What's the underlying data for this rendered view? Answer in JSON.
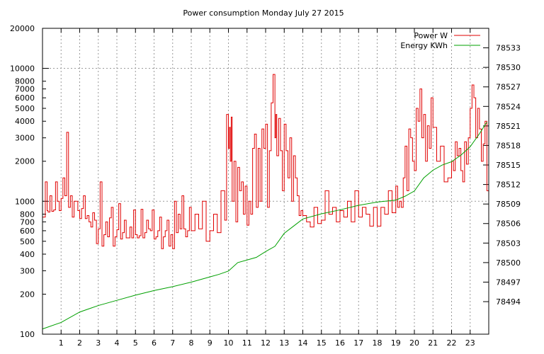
{
  "chart_data": {
    "type": "line",
    "title": "Power consumption Monday July 27 2015",
    "xlabel": "",
    "ylabel": "",
    "x_ticks": [
      "1",
      "2",
      "3",
      "4",
      "5",
      "6",
      "7",
      "8",
      "9",
      "10",
      "11",
      "12",
      "13",
      "14",
      "15",
      "16",
      "17",
      "18",
      "19",
      "20",
      "21",
      "22",
      "23"
    ],
    "xlim": [
      0,
      24
    ],
    "y_left": {
      "scale": "log",
      "lim": [
        100,
        20000
      ],
      "ticks": [
        100,
        200,
        300,
        400,
        500,
        600,
        700,
        800,
        1000,
        2000,
        3000,
        4000,
        5000,
        6000,
        7000,
        8000,
        10000,
        20000
      ]
    },
    "y_right": {
      "scale": "linear",
      "lim": [
        78489,
        78536
      ],
      "ticks": [
        78494,
        78497,
        78500,
        78503,
        78506,
        78509,
        78512,
        78515,
        78518,
        78521,
        78524,
        78527,
        78530,
        78533
      ]
    },
    "grid": true,
    "legend_position": "top-right",
    "series": [
      {
        "name": "Power W",
        "axis": "left",
        "color": "#e00000",
        "x": [
          0,
          0.15,
          0.25,
          0.3,
          0.4,
          0.5,
          0.6,
          0.7,
          0.8,
          0.9,
          1.0,
          1.1,
          1.2,
          1.3,
          1.4,
          1.5,
          1.6,
          1.7,
          1.8,
          1.9,
          2.0,
          2.1,
          2.2,
          2.3,
          2.4,
          2.5,
          2.6,
          2.7,
          2.8,
          2.9,
          3.0,
          3.1,
          3.2,
          3.3,
          3.4,
          3.5,
          3.6,
          3.7,
          3.8,
          3.9,
          4.0,
          4.1,
          4.2,
          4.3,
          4.4,
          4.5,
          4.6,
          4.7,
          4.8,
          4.9,
          5.0,
          5.1,
          5.2,
          5.3,
          5.4,
          5.5,
          5.6,
          5.7,
          5.8,
          5.9,
          6.0,
          6.1,
          6.2,
          6.3,
          6.4,
          6.5,
          6.6,
          6.7,
          6.8,
          6.9,
          7.0,
          7.1,
          7.2,
          7.3,
          7.4,
          7.5,
          7.6,
          7.7,
          7.8,
          7.9,
          8.0,
          8.2,
          8.4,
          8.6,
          8.8,
          9.0,
          9.2,
          9.4,
          9.6,
          9.8,
          9.9,
          10.0,
          10.05,
          10.1,
          10.15,
          10.2,
          10.3,
          10.4,
          10.5,
          10.6,
          10.7,
          10.8,
          10.9,
          11.0,
          11.1,
          11.2,
          11.3,
          11.4,
          11.5,
          11.6,
          11.7,
          11.8,
          11.9,
          12.0,
          12.1,
          12.2,
          12.3,
          12.4,
          12.5,
          12.55,
          12.6,
          12.7,
          12.8,
          12.9,
          13.0,
          13.1,
          13.2,
          13.3,
          13.4,
          13.5,
          13.6,
          13.7,
          13.8,
          13.9,
          14.0,
          14.2,
          14.4,
          14.6,
          14.8,
          15.0,
          15.2,
          15.4,
          15.6,
          15.8,
          16.0,
          16.2,
          16.4,
          16.6,
          16.8,
          17.0,
          17.2,
          17.4,
          17.6,
          17.8,
          18.0,
          18.2,
          18.4,
          18.6,
          18.8,
          19.0,
          19.1,
          19.2,
          19.3,
          19.4,
          19.5,
          19.6,
          19.7,
          19.8,
          19.9,
          20.0,
          20.1,
          20.2,
          20.3,
          20.4,
          20.5,
          20.6,
          20.7,
          20.8,
          20.9,
          21.0,
          21.2,
          21.4,
          21.6,
          21.8,
          22.0,
          22.1,
          22.2,
          22.3,
          22.4,
          22.5,
          22.6,
          22.7,
          22.8,
          22.9,
          23.0,
          23.1,
          23.2,
          23.3,
          23.4,
          23.5,
          23.6,
          23.7,
          23.8,
          23.9
        ],
        "y": [
          760,
          1400,
          850,
          830,
          1100,
          840,
          860,
          1400,
          1000,
          850,
          1050,
          1500,
          1100,
          3300,
          900,
          1100,
          760,
          1000,
          1000,
          850,
          740,
          880,
          1100,
          740,
          780,
          700,
          640,
          820,
          720,
          480,
          620,
          1400,
          460,
          560,
          700,
          540,
          750,
          900,
          460,
          540,
          610,
          960,
          520,
          580,
          720,
          530,
          530,
          640,
          530,
          860,
          560,
          530,
          550,
          870,
          530,
          580,
          720,
          620,
          600,
          860,
          520,
          540,
          600,
          760,
          440,
          540,
          600,
          720,
          460,
          560,
          440,
          1000,
          580,
          800,
          620,
          1100,
          620,
          540,
          600,
          900,
          600,
          800,
          620,
          1000,
          500,
          600,
          800,
          580,
          1200,
          720,
          4500,
          2500,
          3600,
          2000,
          4300,
          1000,
          2000,
          700,
          1800,
          1200,
          1400,
          800,
          1300,
          660,
          1000,
          800,
          2500,
          3200,
          900,
          2500,
          1000,
          3500,
          2500,
          3800,
          900,
          2400,
          5500,
          9000,
          3000,
          4500,
          2200,
          4200,
          2400,
          1200,
          3800,
          2400,
          1500,
          3000,
          1000,
          2200,
          1500,
          1100,
          780,
          850,
          780,
          700,
          640,
          900,
          680,
          720,
          1200,
          800,
          900,
          700,
          850,
          760,
          1000,
          700,
          1200,
          760,
          900,
          800,
          650,
          900,
          650,
          900,
          800,
          1200,
          820,
          1300,
          900,
          1000,
          900,
          1500,
          2600,
          1200,
          3500,
          3000,
          2000,
          1700,
          5000,
          4000,
          7000,
          3000,
          4500,
          2000,
          3700,
          2500,
          6000,
          3600,
          2000,
          2600,
          1400,
          1500,
          2000,
          1700,
          2800,
          2200,
          2500,
          1700,
          1400,
          2800,
          1900,
          3000,
          5000,
          7500,
          6000,
          3000,
          5000,
          3500,
          2000,
          2700,
          4000,
          1200
        ]
      },
      {
        "name": "Energy KWh",
        "axis": "right",
        "color": "#00a000",
        "x": [
          0,
          1,
          2,
          3,
          4,
          5,
          6,
          7,
          8,
          9,
          9.5,
          10,
          10.5,
          11,
          11.5,
          12,
          12.5,
          13,
          13.5,
          14,
          15,
          16,
          17,
          18,
          19,
          19.5,
          20,
          20.5,
          21,
          21.5,
          22,
          22.5,
          23,
          23.5,
          23.9
        ],
        "y": [
          78489.8,
          78490.8,
          78492.4,
          78493.4,
          78494.2,
          78495.0,
          78495.7,
          78496.3,
          78497.0,
          78497.8,
          78498.2,
          78498.7,
          78500.0,
          78500.4,
          78500.8,
          78501.7,
          78502.5,
          78504.5,
          78505.6,
          78506.7,
          78507.5,
          78508.1,
          78508.8,
          78509.3,
          78509.6,
          78510.2,
          78511.0,
          78513.0,
          78514.2,
          78515.0,
          78515.5,
          78516.5,
          78517.8,
          78519.8,
          78521.6
        ]
      }
    ]
  }
}
